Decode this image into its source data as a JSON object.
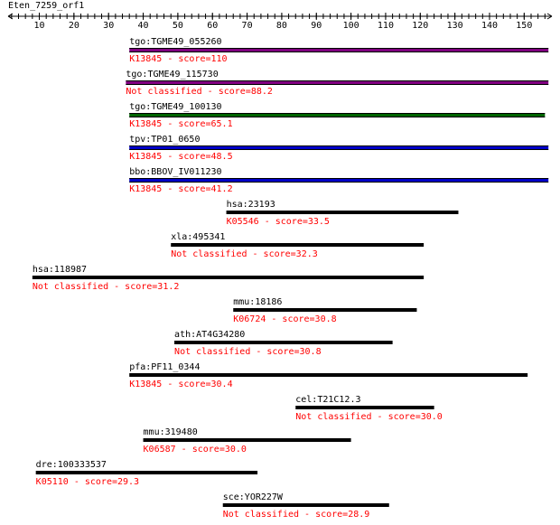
{
  "query": "Eten_7259_orf1",
  "axis": {
    "min": 1,
    "max": 158,
    "tick_labels": [
      10,
      20,
      30,
      40,
      50,
      60,
      70,
      80,
      90,
      100,
      110,
      120,
      130,
      140,
      150
    ]
  },
  "colors": {
    "label": "#000000",
    "score": "#ff0000",
    "black_bar": "#000000",
    "purple_bar": "#800080",
    "green_bar": "#006400",
    "blue_bar": "#0000c8"
  },
  "chart_data": {
    "type": "alignment",
    "hits": [
      {
        "gene": "tgo:TGME49_055260",
        "annotation": "K13845 - score=110",
        "start": 36,
        "end": 157,
        "color": "#800080",
        "bar_weight": 1
      },
      {
        "gene": "tgo:TGME49_115730",
        "annotation": "Not classified - score=88.2",
        "start": 35,
        "end": 157,
        "color": "#800080",
        "bar_weight": 1
      },
      {
        "gene": "tgo:TGME49_100130",
        "annotation": "K13845 - score=65.1",
        "start": 36,
        "end": 156,
        "color": "#006400",
        "bar_weight": 1
      },
      {
        "gene": "tpv:TP01_0650",
        "annotation": "K13845 - score=48.5",
        "start": 36,
        "end": 157,
        "color": "#0000c8",
        "bar_weight": 1
      },
      {
        "gene": "bbo:BBOV_IV011230",
        "annotation": "K13845 - score=41.2",
        "start": 36,
        "end": 157,
        "color": "#0000c8",
        "bar_weight": 1
      },
      {
        "gene": "hsa:23193",
        "annotation": "K05546 - score=33.5",
        "start": 64,
        "end": 131,
        "color": "#000000",
        "bar_weight": 0
      },
      {
        "gene": "xla:495341",
        "annotation": "Not classified - score=32.3",
        "start": 48,
        "end": 121,
        "color": "#000000",
        "bar_weight": 0
      },
      {
        "gene": "hsa:118987",
        "annotation": "Not classified - score=31.2",
        "start": 8,
        "end": 121,
        "color": "#000000",
        "bar_weight": 0
      },
      {
        "gene": "mmu:18186",
        "annotation": "K06724 - score=30.8",
        "start": 66,
        "end": 119,
        "color": "#000000",
        "bar_weight": 0
      },
      {
        "gene": "ath:AT4G34280",
        "annotation": "Not classified - score=30.8",
        "start": 49,
        "end": 112,
        "color": "#000000",
        "bar_weight": 0
      },
      {
        "gene": "pfa:PF11_0344",
        "annotation": "K13845 - score=30.4",
        "start": 36,
        "end": 151,
        "color": "#000000",
        "bar_weight": 0
      },
      {
        "gene": "cel:T21C12.3",
        "annotation": "Not classified - score=30.0",
        "start": 84,
        "end": 124,
        "color": "#000000",
        "bar_weight": 0
      },
      {
        "gene": "mmu:319480",
        "annotation": "K06587 - score=30.0",
        "start": 40,
        "end": 100,
        "color": "#000000",
        "bar_weight": 0
      },
      {
        "gene": "dre:100333537",
        "annotation": "K05110 - score=29.3",
        "start": 9,
        "end": 73,
        "color": "#000000",
        "bar_weight": 0
      },
      {
        "gene": "sce:YOR227W",
        "annotation": "Not classified - score=28.9",
        "start": 63,
        "end": 111,
        "color": "#000000",
        "bar_weight": 0
      }
    ]
  }
}
